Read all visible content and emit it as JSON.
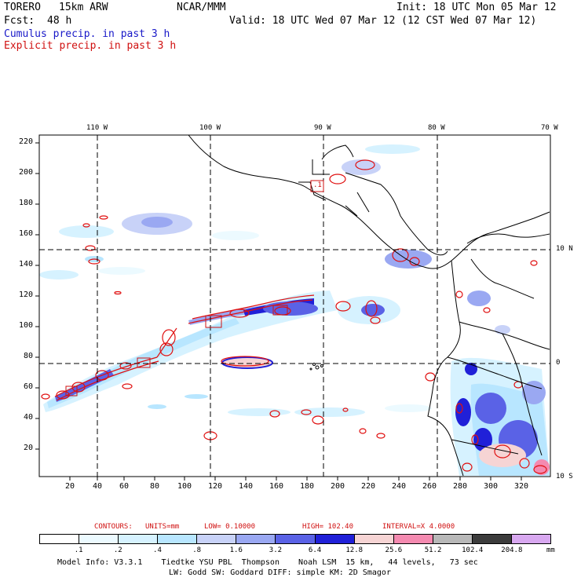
{
  "header": {
    "model_name": "TORERO",
    "resolution": "15km ARW",
    "center": "NCAR/MMM",
    "init": "Init: 18 UTC Mon 05 Mar 12",
    "fcst_label": "Fcst:",
    "fcst_value": "48 h",
    "valid": "Valid: 18 UTC Wed 07 Mar 12 (12 CST Wed 07 Mar 12)",
    "cumulus_label": "Cumulus precip. in past 3 h",
    "explicit_label": "Explicit precip. in past 3 h"
  },
  "map": {
    "longitudes": [
      "110 W",
      "100 W",
      "90 W",
      "80 W",
      "70 W"
    ],
    "latitudes": [
      "10 N",
      "0",
      "10 S"
    ],
    "x_ticks": [
      "20",
      "40",
      "60",
      "80",
      "100",
      "120",
      "140",
      "160",
      "180",
      "200",
      "220",
      "240",
      "260",
      "280",
      "300",
      "320"
    ],
    "y_ticks": [
      "20",
      "40",
      "60",
      "80",
      "100",
      "120",
      "140",
      "160",
      "180",
      "200",
      "220"
    ],
    "box_labels": [
      ".1"
    ]
  },
  "contours": {
    "title": "CONTOURS:",
    "units": "UNITS=mm",
    "low": "LOW= 0.10000",
    "high": "HIGH= 102.40",
    "interval": "INTERVAL=X 4.0000"
  },
  "legend": {
    "values": [
      ".1",
      ".2",
      ".4",
      ".8",
      "1.6",
      "3.2",
      "6.4",
      "12.8",
      "25.6",
      "51.2",
      "102.4",
      "204.8"
    ],
    "unit": "mm",
    "colors": [
      "#ffffff",
      "#ecfaff",
      "#d6f2ff",
      "#b8e6ff",
      "#c8d2f8",
      "#9aa8f2",
      "#5a62e6",
      "#2020d8",
      "#f6d4d4",
      "#f48ab0",
      "#b8b8b8",
      "#3c3c3c",
      "#d8a8f0"
    ]
  },
  "footer": {
    "line1": "Model Info: V3.3.1    Tiedtke YSU PBL  Thompson    Noah LSM  15 km,   44 levels,   73 sec",
    "line2": "LW: Godd SW: Goddard DIFF: simple KM: 2D Smagor"
  }
}
